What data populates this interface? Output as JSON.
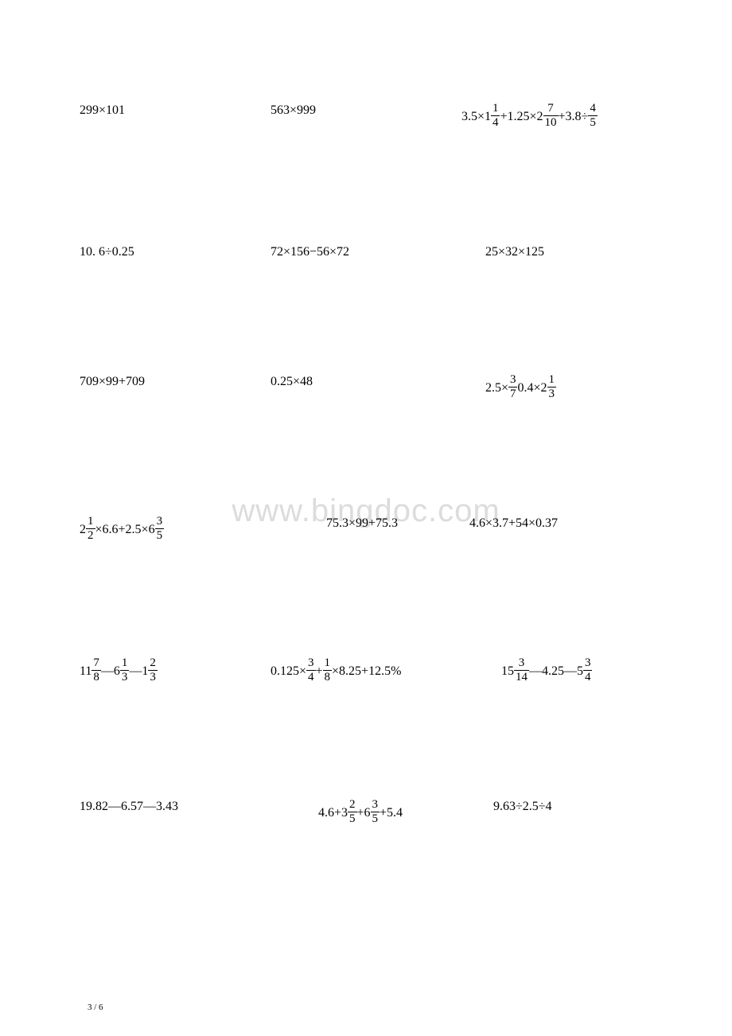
{
  "watermark": "www.bingdoc.com",
  "pageNumber": "3 / 6",
  "rows": [
    {
      "cells": [
        {
          "parts": [
            {
              "t": "text",
              "v": "299×101"
            }
          ]
        },
        {
          "parts": [
            {
              "t": "text",
              "v": "563×999"
            }
          ]
        },
        {
          "parts": [
            {
              "t": "text",
              "v": "3.5×"
            },
            {
              "t": "mixed",
              "w": "1",
              "n": "1",
              "d": "4"
            },
            {
              "t": "text",
              "v": "+1.25×"
            },
            {
              "t": "mixed",
              "w": "2",
              "n": "7",
              "d": "10"
            },
            {
              "t": "text",
              "v": "+3.8÷"
            },
            {
              "t": "frac",
              "n": "4",
              "d": "5"
            }
          ]
        }
      ]
    },
    {
      "cells": [
        {
          "parts": [
            {
              "t": "text",
              "v": "10. 6÷0.25"
            }
          ]
        },
        {
          "parts": [
            {
              "t": "text",
              "v": "72×156−56×72"
            }
          ]
        },
        {
          "parts": [
            {
              "t": "text",
              "v": "25×32×125"
            }
          ],
          "padLeft": 30
        }
      ]
    },
    {
      "cells": [
        {
          "parts": [
            {
              "t": "text",
              "v": "709×99+709"
            }
          ]
        },
        {
          "parts": [
            {
              "t": "text",
              "v": "0.25×48"
            }
          ]
        },
        {
          "parts": [
            {
              "t": "text",
              "v": "2.5×"
            },
            {
              "t": "frac",
              "n": "3",
              "d": "7"
            },
            {
              "t": "text",
              "v": "0.4×"
            },
            {
              "t": "mixed",
              "w": "2",
              "n": "1",
              "d": "3"
            }
          ],
          "padLeft": 30
        }
      ]
    },
    {
      "cells": [
        {
          "parts": [
            {
              "t": "mixed",
              "w": "2",
              "n": "1",
              "d": "2"
            },
            {
              "t": "text",
              "v": "×6.6+2.5×"
            },
            {
              "t": "mixed",
              "w": "6",
              "n": "3",
              "d": "5"
            }
          ]
        },
        {
          "parts": [
            {
              "t": "text",
              "v": "75.3×99+75.3"
            }
          ],
          "padLeft": 70
        },
        {
          "parts": [
            {
              "t": "text",
              "v": "4.6×3.7+54×0.37"
            }
          ],
          "padLeft": 10
        }
      ]
    },
    {
      "cells": [
        {
          "parts": [
            {
              "t": "mixed",
              "w": "11",
              "n": "7",
              "d": "8"
            },
            {
              "t": "text",
              "v": "—"
            },
            {
              "t": "mixed",
              "w": "6",
              "n": "1",
              "d": "3"
            },
            {
              "t": "text",
              "v": "—"
            },
            {
              "t": "mixed",
              "w": "1",
              "n": "2",
              "d": "3"
            }
          ]
        },
        {
          "parts": [
            {
              "t": "text",
              "v": "0.125×"
            },
            {
              "t": "frac",
              "n": "3",
              "d": "4"
            },
            {
              "t": "text",
              "v": "+"
            },
            {
              "t": "frac",
              "n": "1",
              "d": "8"
            },
            {
              "t": "text",
              "v": "×8.25+12.5%"
            }
          ]
        },
        {
          "parts": [
            {
              "t": "mixed",
              "w": "15",
              "n": "3",
              "d": "14"
            },
            {
              "t": "text",
              "v": "—4.25—"
            },
            {
              "t": "mixed",
              "w": "5",
              "n": "3",
              "d": "4"
            }
          ],
          "padLeft": 50
        }
      ]
    },
    {
      "cells": [
        {
          "parts": [
            {
              "t": "text",
              "v": "19.82—6.57—3.43"
            }
          ]
        },
        {
          "parts": [
            {
              "t": "text",
              "v": "4.6+"
            },
            {
              "t": "mixed",
              "w": "3",
              "n": "2",
              "d": "5"
            },
            {
              "t": "text",
              "v": "+"
            },
            {
              "t": "mixed",
              "w": "6",
              "n": "3",
              "d": "5"
            },
            {
              "t": "text",
              "v": "+5.4"
            }
          ],
          "padLeft": 60
        },
        {
          "parts": [
            {
              "t": "text",
              "v": "9.63÷2.5÷4"
            }
          ],
          "padLeft": 40
        }
      ]
    }
  ]
}
